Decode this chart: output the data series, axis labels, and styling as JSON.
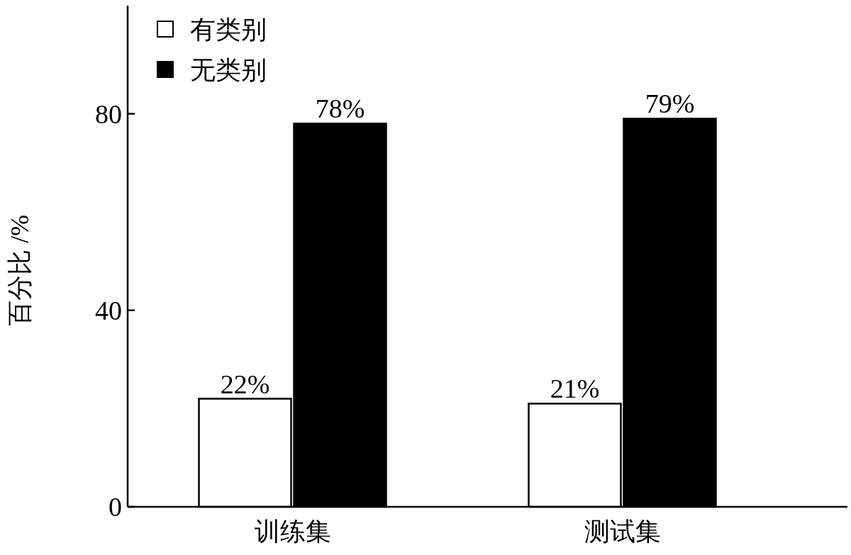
{
  "chart_data": {
    "type": "bar",
    "ylabel": "百分比 /%",
    "categories": [
      "训练集",
      "测试集"
    ],
    "series": [
      {
        "name": "有类别",
        "color": "#ffffff",
        "values": [
          22,
          21
        ],
        "value_labels": [
          "22%",
          "21%"
        ]
      },
      {
        "name": "无类别",
        "color": "#000000",
        "values": [
          78,
          79
        ],
        "value_labels": [
          "78%",
          "79%"
        ]
      }
    ],
    "ylim": [
      0,
      102
    ],
    "yticks": [
      0,
      40,
      80
    ],
    "legend": "top left",
    "grid": false
  }
}
